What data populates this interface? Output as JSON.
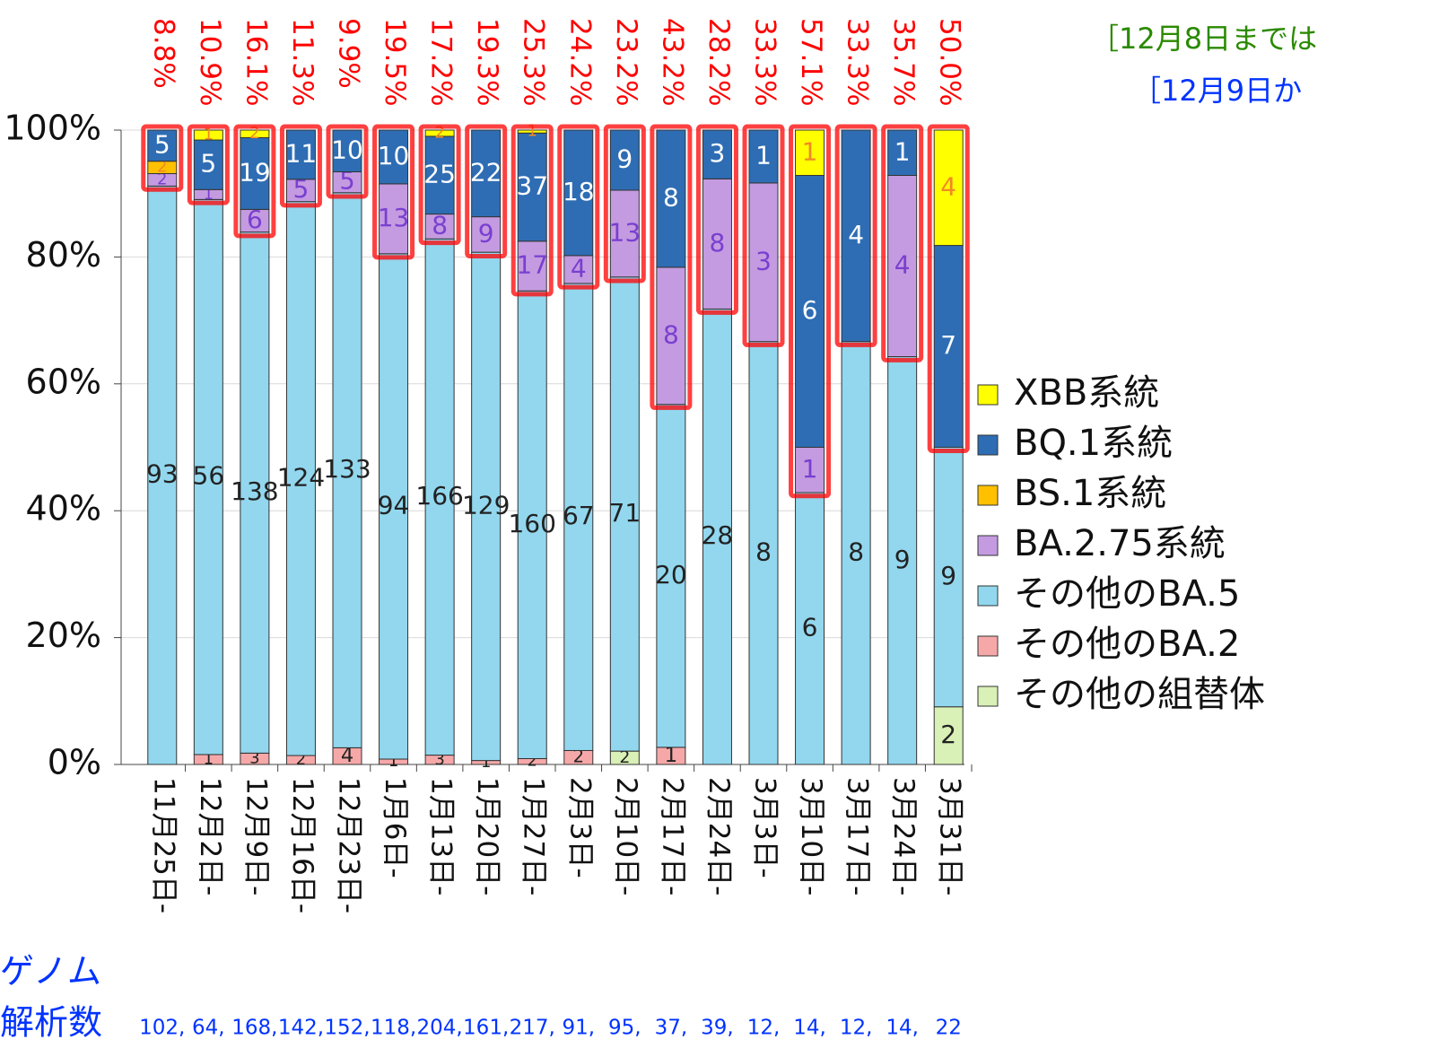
{
  "chart_data": {
    "type": "stacked_bar_100",
    "categories": [
      "11月25日-",
      "12月2日-",
      "12月9日-",
      "12月16日-",
      "12月23日-",
      "1月6日-",
      "1月13日-",
      "1月20日-",
      "1月27日-",
      "2月3日-",
      "2月10日-",
      "2月17日-",
      "2月24日-",
      "3月3日-",
      "3月10日-",
      "3月17日-",
      "3月24日-",
      "3月31日-"
    ],
    "series": [
      {
        "name": "XBB系統",
        "color": "#ffff00",
        "label_color": "#f08a24",
        "values": [
          0,
          1,
          2,
          0,
          0,
          0,
          2,
          0,
          1,
          0,
          0,
          0,
          0,
          0,
          1,
          0,
          0,
          4
        ]
      },
      {
        "name": "BQ.1系統",
        "color": "#2e6db4",
        "label_color": "#ffffff",
        "values": [
          5,
          5,
          19,
          11,
          10,
          10,
          25,
          22,
          37,
          18,
          9,
          8,
          3,
          1,
          6,
          4,
          1,
          7
        ]
      },
      {
        "name": "BS.1系統",
        "color": "#ffc000",
        "label_color": "#f08a24",
        "values": [
          2,
          0,
          0,
          0,
          0,
          0,
          0,
          0,
          0,
          0,
          0,
          0,
          0,
          0,
          0,
          0,
          0,
          0
        ]
      },
      {
        "name": "BA.2.75系統",
        "color": "#c49be0",
        "label_color": "#7a3fd0",
        "values": [
          2,
          1,
          6,
          5,
          5,
          13,
          8,
          9,
          17,
          4,
          13,
          8,
          8,
          3,
          1,
          0,
          4,
          0
        ]
      },
      {
        "name": "その他のBA.5",
        "color": "#92d7ee",
        "label_color": "#222222",
        "values": [
          93,
          56,
          138,
          124,
          133,
          94,
          166,
          129,
          160,
          67,
          71,
          20,
          28,
          8,
          6,
          8,
          9,
          9
        ]
      },
      {
        "name": "その他のBA.2",
        "color": "#f6a8a8",
        "label_color": "#222222",
        "values": [
          0,
          1,
          3,
          2,
          4,
          1,
          3,
          1,
          2,
          2,
          0,
          1,
          0,
          0,
          0,
          0,
          0,
          0
        ]
      },
      {
        "name": "その他の組替体",
        "color": "#d9f0b6",
        "label_color": "#222222",
        "values": [
          0,
          0,
          0,
          0,
          0,
          0,
          0,
          0,
          0,
          0,
          2,
          0,
          0,
          0,
          0,
          0,
          0,
          2
        ]
      }
    ],
    "highlight": {
      "color": "#ff0000",
      "values": [
        8.8,
        10.9,
        16.1,
        11.3,
        9.9,
        19.5,
        17.2,
        19.3,
        25.3,
        24.2,
        23.2,
        43.2,
        28.2,
        33.3,
        57.1,
        33.3,
        35.7,
        50.0
      ],
      "value_labels": [
        "8.8%",
        "10.9%",
        "16.1%",
        "11.3%",
        "9.9%",
        "19.5%",
        "17.2%",
        "19.3%",
        "25.3%",
        "24.2%",
        "23.2%",
        "43.2%",
        "28.2%",
        "33.3%",
        "57.1%",
        "33.3%",
        "35.7%",
        "50.0%"
      ]
    },
    "ylim": [
      0,
      100
    ],
    "yticks": [
      {
        "value": 0,
        "label": "0%"
      },
      {
        "value": 20,
        "label": "20%"
      },
      {
        "value": 40,
        "label": "40%"
      },
      {
        "value": 60,
        "label": "60%"
      },
      {
        "value": 80,
        "label": "80%"
      },
      {
        "value": 100,
        "label": "100%"
      }
    ],
    "grid": true,
    "legend": "right",
    "annotations": [
      "［12月8日までは",
      "［12月9日か"
    ],
    "genome_label": [
      "ゲノム",
      "解析数"
    ],
    "genome_counts": [
      "102,",
      "64,",
      "168,",
      "142,",
      "152,",
      "118,",
      "204,",
      "161,",
      "217,",
      "91,",
      "95,",
      "37,",
      "39,",
      "12,",
      "14,",
      "12,",
      "14,",
      "22"
    ]
  }
}
